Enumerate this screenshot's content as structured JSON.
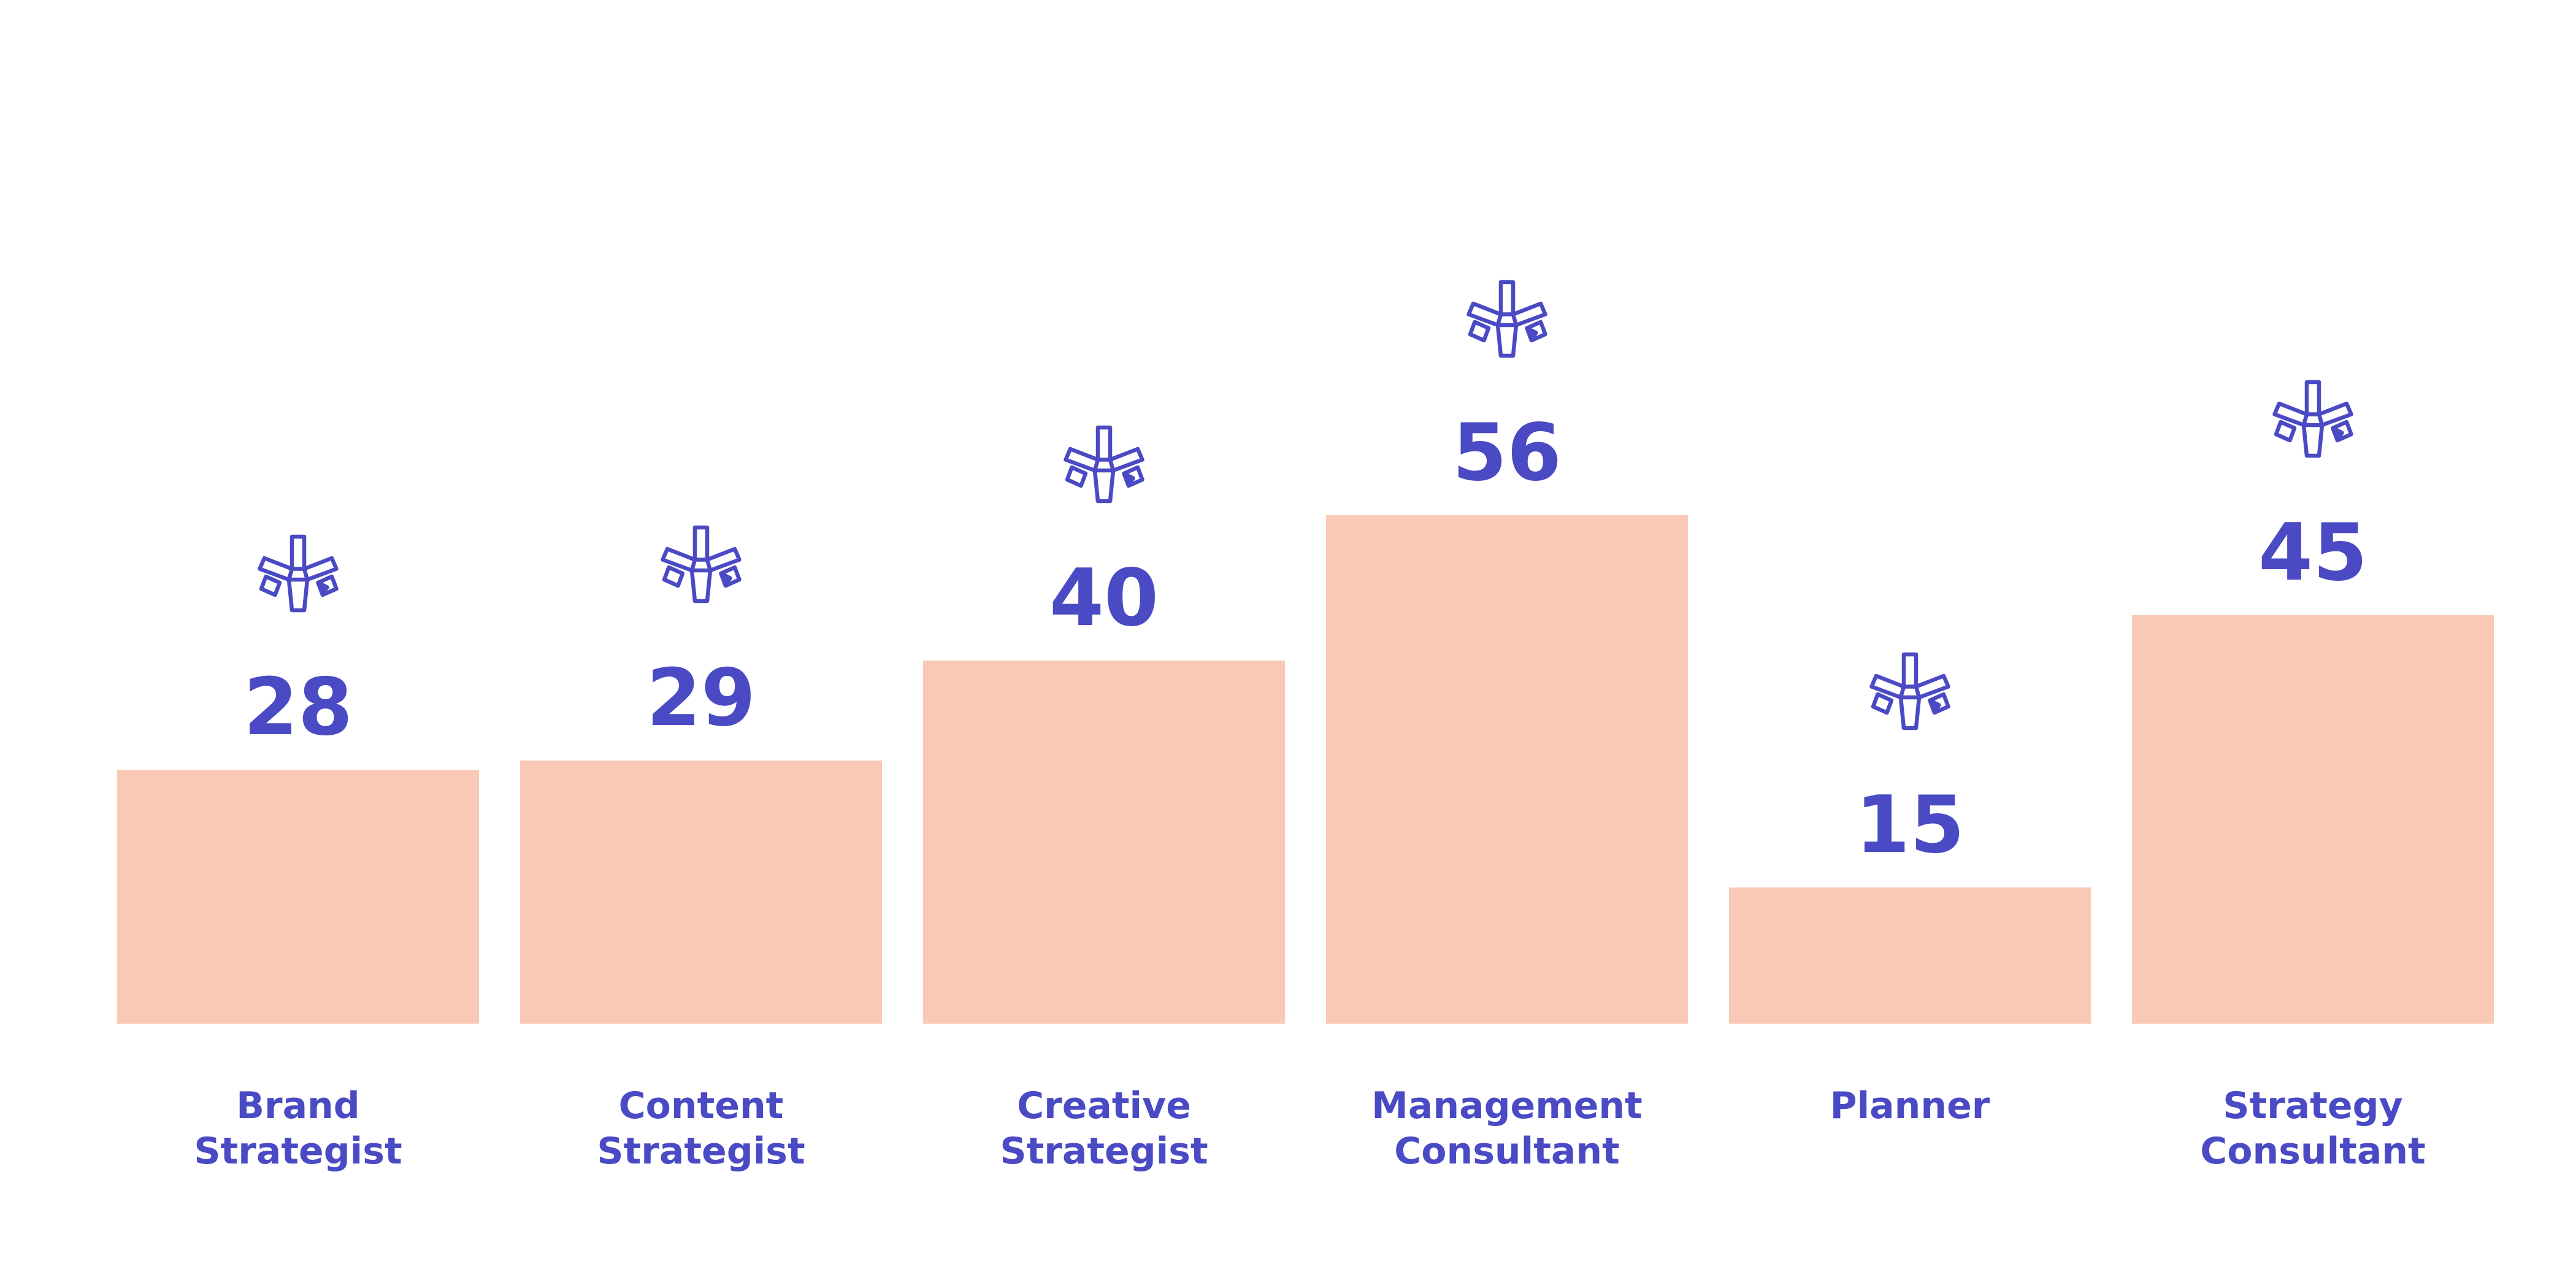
{
  "chart_data": {
    "type": "bar",
    "categories": [
      "Brand Strategist",
      "Content Strategist",
      "Creative Strategist",
      "Management Consultant",
      "Planner",
      "Strategy Consultant"
    ],
    "values": [
      28,
      29,
      40,
      56,
      15,
      45
    ],
    "color": "#fac9b6",
    "label_color": "#4a4ac4"
  }
}
